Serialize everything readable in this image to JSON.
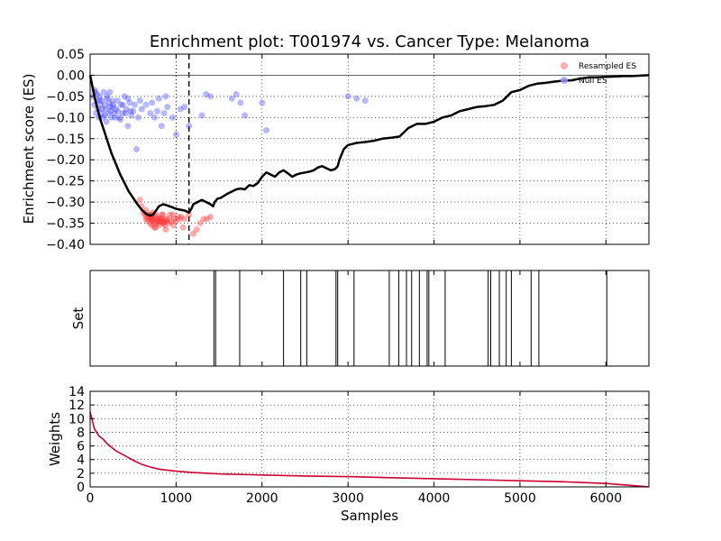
{
  "chart_data": [
    {
      "type": "line",
      "panel": "enrichment",
      "title": "Enrichment plot: T001974 vs. Cancer Type: Melanoma",
      "xlabel": "",
      "ylabel": "Enrichment score (ES)",
      "xlim": [
        0,
        6500
      ],
      "ylim": [
        -0.4,
        0.05
      ],
      "yticks": [
        0.05,
        0.0,
        -0.05,
        -0.1,
        -0.15,
        -0.2,
        -0.25,
        -0.3,
        -0.35,
        -0.4
      ],
      "ytick_labels": [
        "0.05",
        "0.00",
        "−0.05",
        "−0.10",
        "−0.15",
        "−0.20",
        "−0.25",
        "−0.30",
        "−0.35",
        "−0.40"
      ],
      "xticks": [
        0,
        1000,
        2000,
        3000,
        4000,
        5000,
        6000
      ],
      "grid": true,
      "legend_position": "top-right",
      "legend": [
        {
          "label": "Resampled ES",
          "color": "#ff9999"
        },
        {
          "label": "Null ES",
          "color": "#9999ff"
        }
      ],
      "vlines": [
        {
          "x": 1000,
          "style": "dotted"
        },
        {
          "x": 1150,
          "style": "dashed"
        }
      ],
      "series": [
        {
          "type": "line",
          "color": "#000000",
          "x": [
            0,
            20,
            50,
            80,
            120,
            160,
            200,
            250,
            300,
            350,
            400,
            450,
            500,
            550,
            600,
            650,
            700,
            730,
            760,
            800,
            850,
            900,
            950,
            1000,
            1050,
            1100,
            1150,
            1180,
            1200,
            1250,
            1300,
            1350,
            1400,
            1430,
            1450,
            1480,
            1520,
            1560,
            1600,
            1650,
            1700,
            1750,
            1800,
            1850,
            1900,
            1950,
            2000,
            2050,
            2100,
            2150,
            2200,
            2250,
            2300,
            2350,
            2400,
            2450,
            2500,
            2550,
            2600,
            2650,
            2700,
            2750,
            2800,
            2850,
            2880,
            2900,
            2950,
            3000,
            3100,
            3200,
            3300,
            3400,
            3500,
            3600,
            3700,
            3800,
            3900,
            4000,
            4100,
            4200,
            4300,
            4400,
            4500,
            4600,
            4700,
            4800,
            4900,
            5000,
            5100,
            5200,
            5300,
            5400,
            5500,
            5600,
            5700,
            5800,
            5900,
            6000,
            6100,
            6200,
            6300,
            6400,
            6500
          ],
          "values": [
            0,
            -0.02,
            -0.05,
            -0.075,
            -0.105,
            -0.13,
            -0.155,
            -0.185,
            -0.21,
            -0.235,
            -0.255,
            -0.275,
            -0.29,
            -0.305,
            -0.318,
            -0.328,
            -0.332,
            -0.33,
            -0.322,
            -0.31,
            -0.305,
            -0.308,
            -0.312,
            -0.316,
            -0.318,
            -0.32,
            -0.325,
            -0.315,
            -0.305,
            -0.3,
            -0.295,
            -0.3,
            -0.305,
            -0.31,
            -0.3,
            -0.292,
            -0.29,
            -0.285,
            -0.28,
            -0.275,
            -0.27,
            -0.268,
            -0.27,
            -0.26,
            -0.262,
            -0.255,
            -0.24,
            -0.23,
            -0.235,
            -0.24,
            -0.23,
            -0.225,
            -0.232,
            -0.24,
            -0.235,
            -0.232,
            -0.23,
            -0.228,
            -0.225,
            -0.218,
            -0.215,
            -0.22,
            -0.225,
            -0.222,
            -0.215,
            -0.2,
            -0.175,
            -0.165,
            -0.16,
            -0.158,
            -0.155,
            -0.15,
            -0.148,
            -0.145,
            -0.125,
            -0.115,
            -0.115,
            -0.11,
            -0.1,
            -0.095,
            -0.085,
            -0.08,
            -0.075,
            -0.073,
            -0.07,
            -0.06,
            -0.04,
            -0.035,
            -0.025,
            -0.02,
            -0.018,
            -0.015,
            -0.013,
            -0.012,
            -0.008,
            -0.005,
            -0.005,
            -0.004,
            -0.003,
            -0.002,
            -0.002,
            -0.001,
            0
          ]
        },
        {
          "name": "Resampled ES",
          "type": "scatter",
          "color": "#ff3333",
          "x": [
            580,
            600,
            620,
            640,
            650,
            660,
            670,
            680,
            690,
            700,
            700,
            710,
            720,
            720,
            730,
            740,
            750,
            750,
            760,
            770,
            780,
            790,
            800,
            810,
            820,
            830,
            840,
            850,
            860,
            870,
            880,
            900,
            920,
            940,
            960,
            980,
            1000,
            1020,
            1040,
            1060,
            1080,
            1100,
            1150,
            1200,
            1240,
            1280,
            1320,
            1360,
            1400,
            650,
            690,
            730,
            770,
            810,
            850,
            890,
            930,
            970,
            720,
            760,
            800,
            840,
            880
          ],
          "values": [
            -0.295,
            -0.31,
            -0.325,
            -0.33,
            -0.34,
            -0.335,
            -0.345,
            -0.33,
            -0.34,
            -0.35,
            -0.335,
            -0.34,
            -0.33,
            -0.355,
            -0.345,
            -0.34,
            -0.35,
            -0.36,
            -0.335,
            -0.345,
            -0.34,
            -0.35,
            -0.355,
            -0.34,
            -0.345,
            -0.34,
            -0.33,
            -0.35,
            -0.345,
            -0.355,
            -0.365,
            -0.34,
            -0.35,
            -0.345,
            -0.33,
            -0.34,
            -0.345,
            -0.335,
            -0.34,
            -0.335,
            -0.36,
            -0.34,
            -0.33,
            -0.375,
            -0.365,
            -0.35,
            -0.34,
            -0.34,
            -0.335,
            -0.32,
            -0.33,
            -0.325,
            -0.33,
            -0.34,
            -0.35,
            -0.345,
            -0.33,
            -0.355,
            -0.34,
            -0.36,
            -0.345,
            -0.33,
            -0.34
          ]
        },
        {
          "name": "Null ES",
          "type": "scatter",
          "color": "#3333ff",
          "x": [
            30,
            50,
            60,
            70,
            80,
            90,
            100,
            110,
            120,
            130,
            140,
            150,
            160,
            170,
            180,
            190,
            200,
            210,
            220,
            230,
            240,
            250,
            260,
            270,
            280,
            300,
            320,
            340,
            360,
            380,
            400,
            420,
            440,
            460,
            480,
            500,
            520,
            540,
            560,
            580,
            600,
            650,
            700,
            720,
            750,
            780,
            800,
            830,
            860,
            880,
            900,
            960,
            1000,
            1050,
            1100,
            1150,
            1300,
            1350,
            1400,
            1650,
            1700,
            1750,
            1800,
            2000,
            2050,
            3000,
            3100,
            3200,
            50,
            80,
            110,
            140,
            170,
            200,
            230,
            260,
            290,
            320,
            350,
            380,
            410,
            440,
            470
          ],
          "values": [
            -0.05,
            -0.07,
            -0.04,
            -0.09,
            -0.06,
            -0.08,
            -0.1,
            -0.05,
            -0.07,
            -0.09,
            -0.06,
            -0.1,
            -0.04,
            -0.07,
            -0.08,
            -0.11,
            -0.05,
            -0.09,
            -0.065,
            -0.075,
            -0.085,
            -0.1,
            -0.06,
            -0.07,
            -0.09,
            -0.08,
            -0.06,
            -0.1,
            -0.07,
            -0.09,
            -0.05,
            -0.08,
            -0.12,
            -0.065,
            -0.095,
            -0.085,
            -0.07,
            -0.175,
            -0.1,
            -0.06,
            -0.08,
            -0.07,
            -0.09,
            -0.065,
            -0.1,
            -0.085,
            -0.055,
            -0.12,
            -0.09,
            -0.05,
            -0.075,
            -0.1,
            -0.14,
            -0.08,
            -0.075,
            -0.12,
            -0.095,
            -0.045,
            -0.05,
            -0.055,
            -0.045,
            -0.065,
            -0.095,
            -0.065,
            -0.13,
            -0.05,
            -0.055,
            -0.06,
            -0.035,
            -0.045,
            -0.06,
            -0.08,
            -0.095,
            -0.055,
            -0.04,
            -0.075,
            -0.1,
            -0.085,
            -0.105,
            -0.07,
            -0.09,
            -0.055,
            -0.085
          ]
        }
      ]
    },
    {
      "type": "bar",
      "panel": "set",
      "ylabel": "Set",
      "xlim": [
        0,
        6500
      ],
      "xticks": [
        0,
        1000,
        2000,
        3000,
        4000,
        5000,
        6000
      ],
      "positions": [
        1440,
        1460,
        1740,
        2250,
        2450,
        2520,
        2860,
        2880,
        3070,
        3480,
        3590,
        3680,
        3740,
        3830,
        3920,
        3940,
        4130,
        4630,
        4660,
        4760,
        4840,
        4900,
        5130,
        5220,
        6010
      ]
    },
    {
      "type": "line",
      "panel": "weights",
      "xlabel": "Samples",
      "ylabel": "Weights",
      "xlim": [
        0,
        6500
      ],
      "ylim": [
        0,
        14
      ],
      "yticks": [
        0,
        2,
        4,
        6,
        8,
        10,
        12,
        14
      ],
      "xticks": [
        0,
        1000,
        2000,
        3000,
        4000,
        5000,
        6000
      ],
      "xtick_labels": [
        "0",
        "1000",
        "2000",
        "3000",
        "4000",
        "5000",
        "6000"
      ],
      "grid": true,
      "series": [
        {
          "color": "#cc0033",
          "x": [
            0,
            20,
            50,
            100,
            150,
            200,
            250,
            300,
            400,
            500,
            600,
            700,
            800,
            1000,
            1200,
            1500,
            2000,
            2500,
            3000,
            3500,
            4000,
            4500,
            5000,
            5500,
            6000,
            6200,
            6400,
            6500
          ],
          "values": [
            11,
            10,
            8.5,
            7.5,
            7,
            6.3,
            5.8,
            5.3,
            4.6,
            3.9,
            3.3,
            2.9,
            2.6,
            2.3,
            2.1,
            1.9,
            1.75,
            1.6,
            1.5,
            1.35,
            1.2,
            1.05,
            0.9,
            0.75,
            0.5,
            0.3,
            0.1,
            0
          ]
        }
      ]
    }
  ]
}
